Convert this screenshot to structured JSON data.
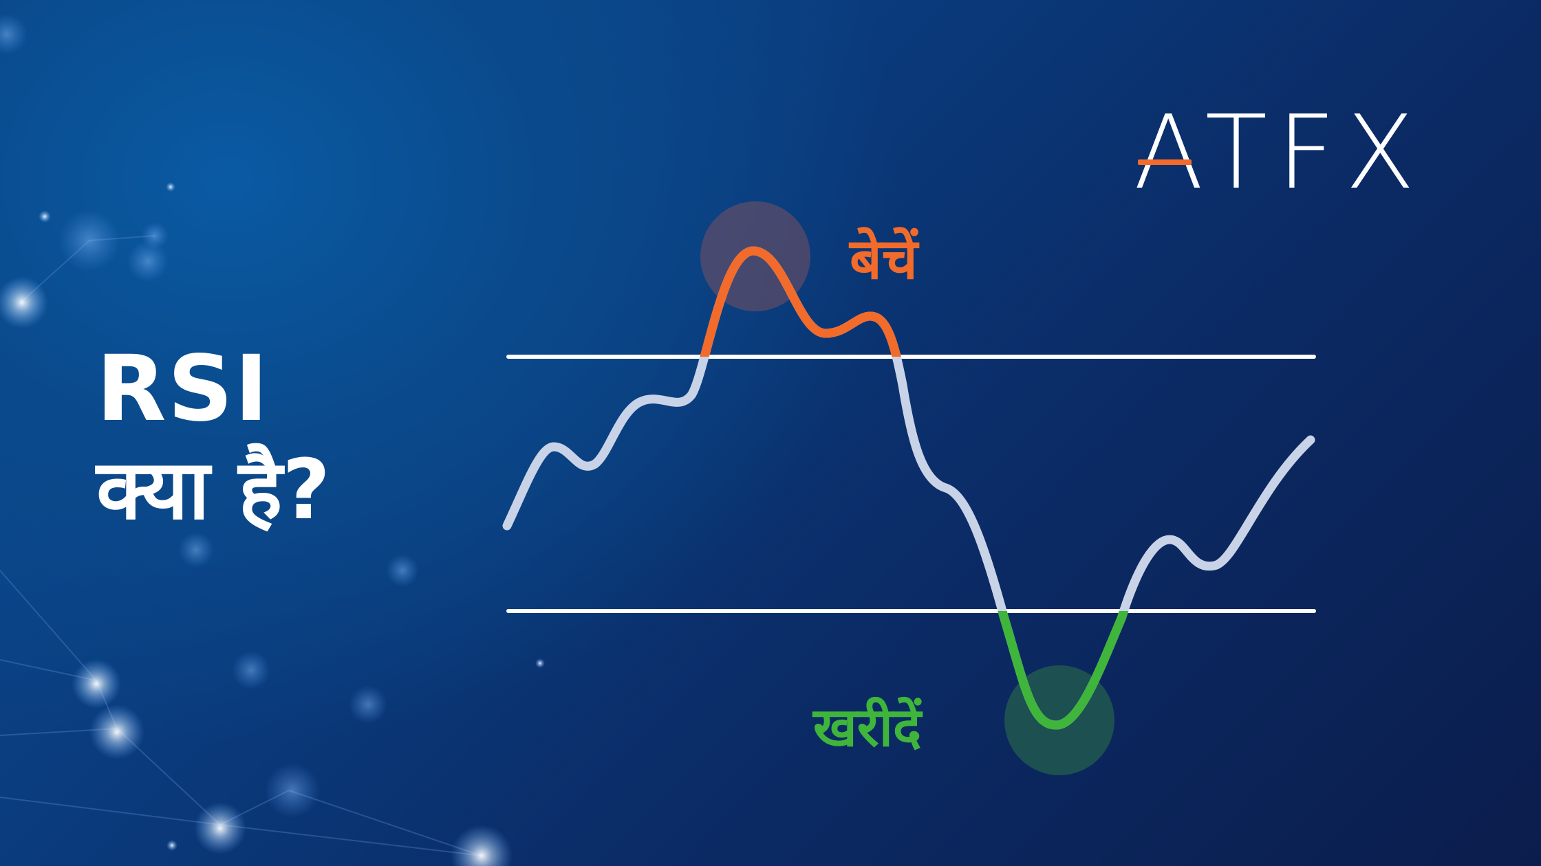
{
  "title": {
    "line1": "RSI",
    "line2": "क्या है?"
  },
  "logo": {
    "text": "ATFX"
  },
  "signals": {
    "sell_label": "बेचें",
    "buy_label": "खरीदें"
  },
  "colors": {
    "background": "#0a3c7e",
    "line": "#c9d3e8",
    "overbought": "#f26b2a",
    "oversold": "#3fb53c",
    "threshold_lines": "#ffffff",
    "text": "#ffffff"
  },
  "icons": {
    "logo_accent": "orange-dash-icon",
    "sell_marker": "highlight-circle-icon",
    "buy_marker": "highlight-circle-icon"
  }
}
